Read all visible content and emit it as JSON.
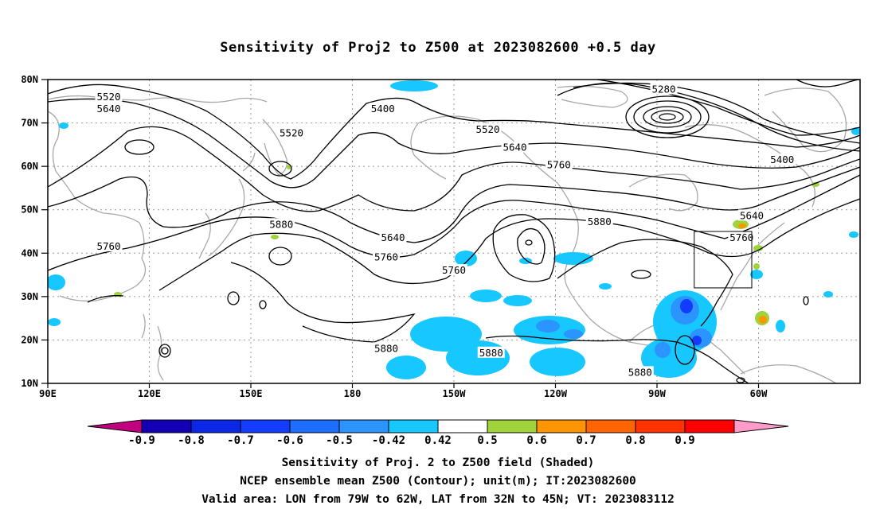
{
  "title": "Sensitivity of Proj2 to Z500 at 2023082600 +0.5 day",
  "latitude_labels": [
    "80N",
    "70N",
    "60N",
    "50N",
    "40N",
    "30N",
    "20N",
    "10N"
  ],
  "longitude_labels": [
    "90E",
    "120E",
    "150E",
    "180",
    "150W",
    "120W",
    "90W",
    "60W"
  ],
  "contour_labels": [
    {
      "text": "5520",
      "lon": 108,
      "lat": 76
    },
    {
      "text": "5640",
      "lon": 108,
      "lat": 73.2
    },
    {
      "text": "5520",
      "lon": 162,
      "lat": 67.6
    },
    {
      "text": "5400",
      "lon": 189,
      "lat": 73.2
    },
    {
      "text": "5520",
      "lon": 220,
      "lat": 68.5
    },
    {
      "text": "5640",
      "lon": 228,
      "lat": 64.3
    },
    {
      "text": "5760",
      "lon": 241,
      "lat": 60.3
    },
    {
      "text": "5280",
      "lon": 272,
      "lat": 77.7
    },
    {
      "text": "5400",
      "lon": 307,
      "lat": 61.5
    },
    {
      "text": "5880",
      "lon": 159,
      "lat": 46.6
    },
    {
      "text": "5760",
      "lon": 108,
      "lat": 41.5
    },
    {
      "text": "5640",
      "lon": 192,
      "lat": 43.5
    },
    {
      "text": "5760",
      "lon": 190,
      "lat": 39
    },
    {
      "text": "5760",
      "lon": 210,
      "lat": 36
    },
    {
      "text": "5880",
      "lon": 253,
      "lat": 47.2
    },
    {
      "text": "5640",
      "lon": 298,
      "lat": 48.6
    },
    {
      "text": "5760",
      "lon": 295,
      "lat": 43.5
    },
    {
      "text": "5880",
      "lon": 190,
      "lat": 18
    },
    {
      "text": "5880",
      "lon": 221,
      "lat": 17
    },
    {
      "text": "5880",
      "lon": 265,
      "lat": 12.5
    }
  ],
  "colorbar": {
    "tick_labels": [
      "-0.9",
      "-0.8",
      "-0.7",
      "-0.6",
      "-0.5",
      "-0.42",
      "0.42",
      "0.5",
      "0.6",
      "0.7",
      "0.8",
      "0.9"
    ],
    "colors": [
      "#c0007f",
      "#1400b4",
      "#0a28e6",
      "#143cff",
      "#1e6eff",
      "#2b94ff",
      "#16c8ff",
      "#ffffff",
      "#a0d23c",
      "#ff9600",
      "#ff6400",
      "#ff3200",
      "#ff0000",
      "#ff9bc8"
    ]
  },
  "valid_box": {
    "lon_west": 281,
    "lon_east": 298,
    "lat_south": 32,
    "lat_north": 45
  },
  "captions": [
    "Sensitivity of Proj. 2 to Z500 field (Shaded)",
    "NCEP ensemble mean Z500 (Contour); unit(m); IT:2023082600",
    "Valid area: LON from 79W to 62W, LAT from 32N to 45N; VT: 2023083112"
  ]
}
